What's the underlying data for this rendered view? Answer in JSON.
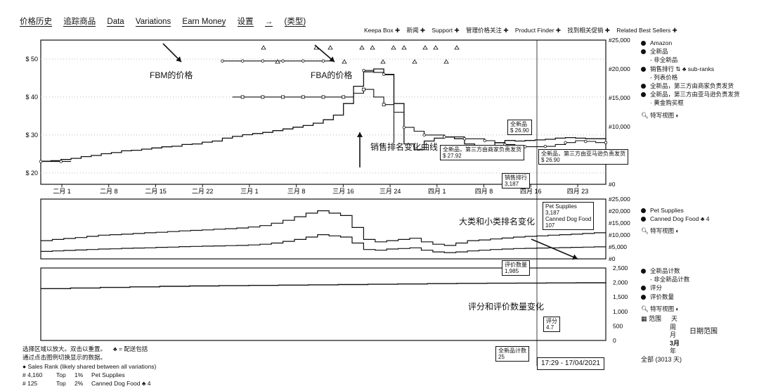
{
  "tabs": [
    "价格历史",
    "追踪商品",
    "Data",
    "Variations",
    "Earn Money",
    "设置",
    "→",
    "(类型)"
  ],
  "top_links": [
    "Keepa Box ✚",
    "新闻 ✚",
    "Support ✚",
    "管理价格关注 ✚",
    "Product Finder ✚",
    "找到相关促销 ✚",
    "Related Best Sellers ✚"
  ],
  "legend1": {
    "items": [
      "Amazon",
      "全新品",
      "- 非全新品",
      "销售排行 ⇅ ♣ sub-ranks",
      "- 列表价格",
      "全新品，第三方由商家负责发货",
      "全新品，第三方由亚马逊负责发货",
      "· 黄金购买框"
    ],
    "close_view": "特写视图"
  },
  "legend2": {
    "items": [
      "Pet Supplies",
      "Canned Dog Food ♣ 4"
    ],
    "close_view": "特写视图"
  },
  "legend3": {
    "items": [
      "全新品计数",
      "- 非全新品计数",
      "评分",
      "评价数量"
    ],
    "close_view": "特写视图",
    "range_label": "范围"
  },
  "range_options": [
    "天",
    "周",
    "月",
    "3月",
    "年",
    "全部 (3013 天)"
  ],
  "date_range_label": "日期范围",
  "bottom_left": {
    "line1": "选择区域以放大。双击以重置。",
    "line1b": "♣ = 配送包括",
    "line2": "通过点击图例切换显示的数据。",
    "line3": "● Sales Rank   (likely shared between all variations)",
    "rows": [
      {
        "rank": "# 4,160",
        "top": "Top",
        "pct": "1%",
        "cat": "Pet Supplies"
      },
      {
        "rank": "# 125",
        "top": "Top",
        "pct": "2%",
        "cat": "Canned Dog Food ♣ 4"
      }
    ]
  },
  "annotations": {
    "fbm": "FBM的价格",
    "fba": "FBA的价格",
    "rank_curve": "销售排名变化曲线",
    "category_rank": "大类和小类排名变化",
    "rating": "评分和评价数量变化"
  },
  "tooltips": {
    "new_price": [
      "全新品",
      "$ 26.90"
    ],
    "fbm_offer": [
      "全新品，第三方由商家负责发货",
      "$ 27.92"
    ],
    "fba_offer": [
      "全新品，第三方由亚马逊负责发货",
      "$ 26.90"
    ],
    "sales_rank": [
      "销售排行",
      "3,187"
    ],
    "pet_supplies": [
      "Pet Supplies",
      "3,187"
    ],
    "canned": [
      "Canned Dog Food",
      "107"
    ],
    "review_count": [
      "评价数量",
      "1,985"
    ],
    "rating": [
      "评分",
      "4.7"
    ],
    "new_count": [
      "全新品计数",
      "25"
    ],
    "timestamp": "17:29 - 17/04/2021"
  },
  "colors": {
    "line": "#111111",
    "background": "#ffffff"
  },
  "chart_data": [
    {
      "type": "line",
      "title": "",
      "x_ticks": [
        "二月 1",
        "二月 8",
        "二月 15",
        "二月 22",
        "三月 1",
        "三月 8",
        "三月 16",
        "三月 24",
        "四月 1",
        "四月 8",
        "四月 16",
        "四月 23"
      ],
      "y_left_ticks": [
        "$ 20",
        "$ 30",
        "$ 40",
        "$ 50"
      ],
      "y_left_range": [
        17,
        55
      ],
      "y_right_ticks": [
        "#0",
        "#5,000",
        "#10,000",
        "#15,000",
        "#20,000",
        "#25,000"
      ],
      "y_right_range": [
        0,
        25000
      ],
      "series": [
        {
          "name": "销售排行",
          "axis": "right",
          "values": [
            4000,
            4100,
            4300,
            4500,
            4800,
            5000,
            5300,
            5500,
            5800,
            5900,
            6100,
            6300,
            6500,
            6600,
            6900,
            7000,
            7300,
            7500,
            8000,
            8300,
            8600,
            8800,
            9000,
            9300,
            9600,
            9900,
            10200,
            10600,
            11200,
            12000,
            14000,
            17000,
            19500,
            20000,
            19000,
            14000,
            7000,
            6000,
            7500,
            8000,
            8200,
            7900,
            7000,
            5800,
            6500,
            7200,
            7600,
            7500,
            7600,
            7700,
            7800,
            8000,
            8100,
            8000,
            7900,
            7900,
            7800
          ]
        },
        {
          "name": "全新品，第三方由商家负责发货",
          "axis": "left",
          "values": [
            null,
            null,
            null,
            null,
            null,
            null,
            null,
            null,
            null,
            null,
            null,
            null,
            null,
            null,
            null,
            null,
            null,
            null,
            null,
            40,
            40,
            40,
            40,
            40,
            40,
            40,
            40,
            40,
            40,
            40,
            40,
            41,
            42,
            40,
            38,
            27.92,
            null,
            null,
            null,
            null,
            null,
            null,
            null,
            null,
            null,
            null,
            null,
            null,
            null,
            null,
            null,
            null,
            null,
            null,
            null,
            null,
            null
          ]
        },
        {
          "name": "全新品，第三方由亚马逊负责发货",
          "axis": "left",
          "values": [
            23,
            23,
            23,
            23,
            null,
            null,
            null,
            null,
            null,
            null,
            null,
            null,
            null,
            null,
            null,
            null,
            null,
            null,
            49.5,
            49.5,
            49.5,
            49.5,
            49.5,
            49.5,
            49.5,
            49.5,
            49.5,
            49.5,
            49.5,
            49.5,
            null,
            null,
            47,
            46.5,
            46,
            36,
            32,
            31,
            30,
            30,
            29.5,
            29.5,
            29,
            29,
            28.5,
            28,
            27.5,
            27,
            26.9,
            26.9,
            27,
            27.5,
            28,
            28.5,
            28.3,
            28,
            28
          ]
        },
        {
          "name": "列表价格",
          "axis": "left",
          "values": [
            null,
            null,
            null,
            null,
            null,
            null,
            null,
            null,
            null,
            null,
            null,
            null,
            null,
            null,
            null,
            null,
            null,
            null,
            null,
            null,
            null,
            null,
            null,
            null,
            null,
            null,
            null,
            null,
            null,
            null,
            null,
            null,
            null,
            null,
            null,
            null,
            null,
            null,
            null,
            null,
            null,
            null,
            null,
            null,
            null,
            null,
            null,
            null,
            null,
            null,
            null,
            null,
            null,
            null,
            null,
            null,
            null
          ]
        }
      ]
    },
    {
      "type": "line",
      "title": "",
      "y_right_ticks": [
        "#0",
        "#5,000",
        "#10,000",
        "#15,000",
        "#20,000",
        "#25,000"
      ],
      "y_right_range": [
        0,
        25000
      ],
      "series": [
        {
          "name": "Pet Supplies",
          "values": [
            8500,
            9000,
            9400,
            9800,
            10300,
            10800,
            11000,
            11200,
            11500,
            11800,
            12000,
            12300,
            12600,
            12800,
            13000,
            13300,
            13500,
            13800,
            14200,
            14800,
            15800,
            17000,
            18500,
            20000,
            21000,
            20000,
            19000,
            14000,
            9000,
            8000,
            8500,
            9000,
            9500,
            8000,
            7000,
            6500,
            7500,
            8500,
            8800,
            9200,
            9600,
            10000,
            10300,
            10500,
            10800,
            11000,
            11200,
            11500,
            11800,
            12000
          ]
        },
        {
          "name": "Canned Dog Food",
          "values": [
            4000,
            4200,
            4400,
            4600,
            4800,
            5000,
            5100,
            5300,
            5400,
            5500,
            5700,
            5800,
            6000,
            6100,
            6200,
            6300,
            6400,
            6500,
            6700,
            7000,
            7500,
            8200,
            9000,
            10000,
            11000,
            10500,
            10000,
            7500,
            4800,
            4500,
            5000,
            5200,
            5500,
            4500,
            3800,
            3500,
            3800,
            4200,
            4500,
            4800,
            5000,
            5200,
            5300,
            5400,
            5500,
            5600,
            5700,
            5800,
            5900,
            6000
          ]
        }
      ]
    },
    {
      "type": "line",
      "title": "",
      "y_right_ticks": [
        "0",
        "500",
        "1,000",
        "1,500",
        "2,000",
        "2,500"
      ],
      "y_right_range": [
        0,
        2500
      ],
      "series": [
        {
          "name": "评价数量",
          "values": [
            1790,
            1810,
            1830,
            1850,
            1870,
            1880,
            1890,
            1900,
            1910,
            1920,
            1930,
            1940,
            1950,
            1960,
            1970,
            1975,
            1980,
            1985,
            1990,
            2000
          ]
        },
        {
          "name": "评分",
          "values": [
            4.7,
            4.7,
            4.7,
            4.7,
            4.7,
            4.7,
            4.7,
            4.7,
            4.7,
            4.7,
            4.7,
            4.7,
            4.7,
            4.7,
            4.7,
            4.7,
            4.7,
            4.7,
            4.7,
            4.7
          ]
        }
      ]
    }
  ]
}
